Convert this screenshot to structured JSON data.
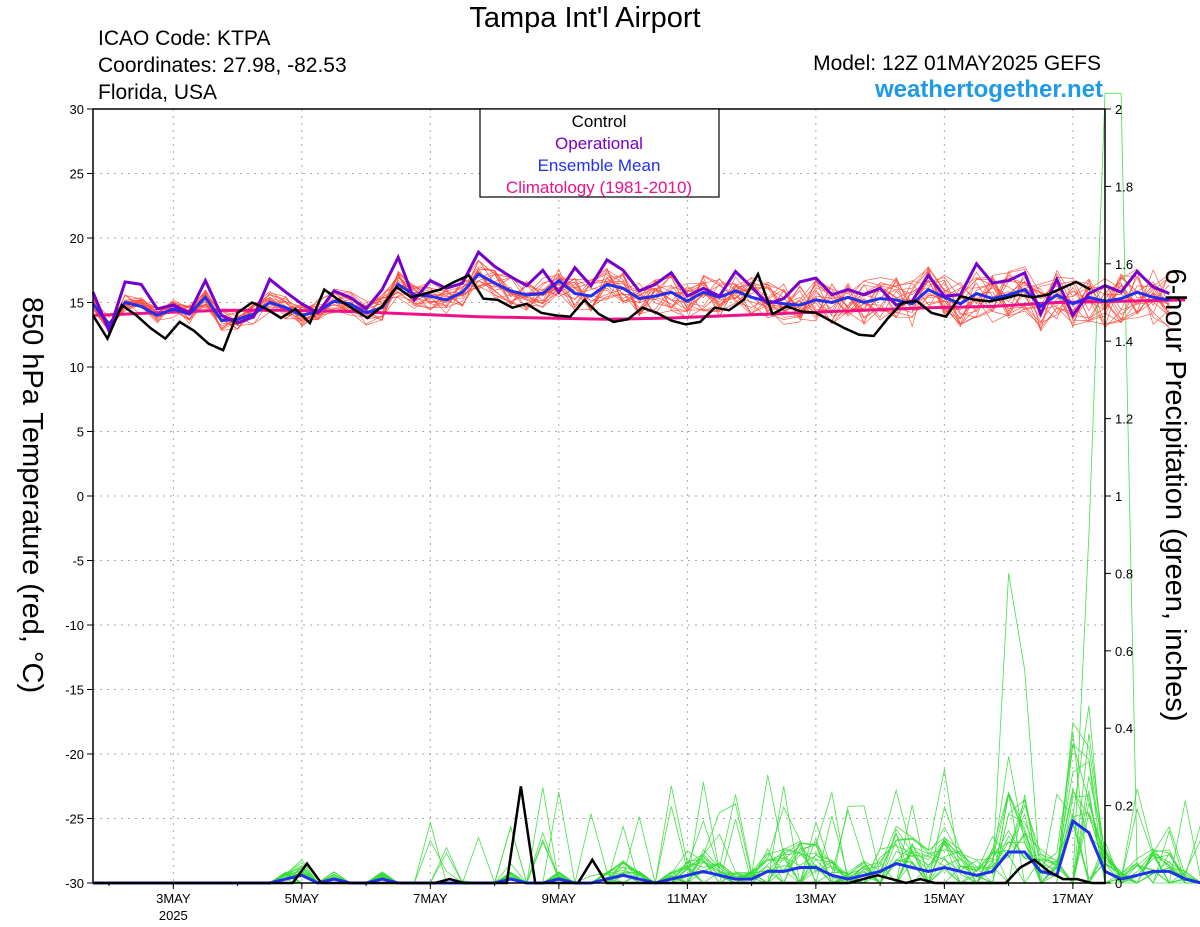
{
  "header": {
    "title": "Tampa Int'l Airport",
    "icao": "ICAO Code: KTPA",
    "coordinates": "Coordinates: 27.98, -82.53",
    "location": "Florida, USA",
    "model": "Model: 12Z 01MAY2025 GEFS",
    "site": "weathertogether.net"
  },
  "chart_data": {
    "type": "line",
    "legend": {
      "placement": "top-center",
      "entries": [
        {
          "label": "Control",
          "color": "#000000"
        },
        {
          "label": "Operational",
          "color": "#7700cc"
        },
        {
          "label": "Ensemble Mean",
          "color": "#2030ee"
        },
        {
          "label": "Climatology (1981-2010)",
          "color": "#ee1188"
        }
      ]
    },
    "y_left": {
      "label": "850 hPa Temperature (red, °C)",
      "range": [
        -30,
        30
      ],
      "ticks": [
        "30",
        "25",
        "20",
        "15",
        "10",
        "5",
        "0",
        "-5",
        "-10",
        "-15",
        "-20",
        "-25",
        "-30"
      ]
    },
    "y_right": {
      "label": "6-hour Precipitation (green, inches)",
      "range": [
        0,
        2
      ],
      "ticks": [
        "2",
        "1.8",
        "1.6",
        "1.4",
        "1.2",
        "1",
        "0.8",
        "0.6",
        "0.4",
        "0.2",
        "0"
      ]
    },
    "x_axis": {
      "range_days": [
        1.75,
        17.5
      ],
      "ticks": [
        {
          "day": 3,
          "label": "3MAY",
          "sub": "2025"
        },
        {
          "day": 5,
          "label": "5MAY"
        },
        {
          "day": 7,
          "label": "7MAY"
        },
        {
          "day": 9,
          "label": "9MAY"
        },
        {
          "day": 11,
          "label": "11MAY"
        },
        {
          "day": 13,
          "label": "13MAY"
        },
        {
          "day": 15,
          "label": "15MAY"
        },
        {
          "day": 17,
          "label": "17MAY"
        }
      ]
    },
    "grid": true,
    "colors": {
      "members_temp": "#ff4a3a",
      "members_precip": "#33dd33",
      "control": "#000000",
      "operational": "#7700cc",
      "mean": "#2030ee",
      "climatology": "#ee1188"
    },
    "control_temp": [
      14.0,
      12.2,
      14.8,
      14.0,
      13.0,
      12.2,
      13.5,
      12.8,
      11.8,
      11.3,
      14.2,
      15.0,
      14.5,
      13.8,
      14.5,
      13.4,
      16.0,
      15.2,
      14.5,
      13.8,
      14.7,
      16.2,
      15.4,
      15.7,
      16.0,
      16.6,
      17.1,
      15.3,
      15.2,
      14.6,
      14.9,
      14.2,
      14.0,
      13.9,
      15.2,
      14.1,
      13.5,
      13.7,
      14.6,
      14.2,
      13.6,
      13.3,
      13.5,
      14.6,
      14.4,
      15.2,
      17.2,
      14.1,
      14.7,
      14.3,
      14.2,
      13.6,
      13.0,
      12.5,
      12.4,
      13.8,
      15.0,
      15.1,
      14.2,
      13.9,
      15.5,
      15.2,
      15.1,
      15.3,
      15.6,
      15.4,
      15.6,
      16.1,
      16.6,
      16.0
    ],
    "operational_temp": [
      15.8,
      12.8,
      16.6,
      16.4,
      14.5,
      14.8,
      14.2,
      16.7,
      14.0,
      13.4,
      13.9,
      16.8,
      15.8,
      14.9,
      14.2,
      15.9,
      15.4,
      14.5,
      16.0,
      18.5,
      15.2,
      16.7,
      16.1,
      16.5,
      18.9,
      17.8,
      17.0,
      16.3,
      17.5,
      15.8,
      17.7,
      16.3,
      18.3,
      17.5,
      15.9,
      16.4,
      17.3,
      15.5,
      16.1,
      15.5,
      17.4,
      16.2,
      14.9,
      15.3,
      16.6,
      16.9,
      15.6,
      16.0,
      15.6,
      16.1,
      14.8,
      15.1,
      17.1,
      15.5,
      15.6,
      18.0,
      16.5,
      16.7,
      17.3,
      14.1,
      16.8,
      14.0,
      15.7,
      16.3,
      15.8,
      17.4,
      16.2,
      15.7
    ],
    "mean_temp": [
      14.9,
      13.3,
      15.0,
      14.7,
      14.0,
      14.5,
      14.1,
      15.4,
      13.6,
      13.7,
      14.1,
      15.0,
      14.6,
      14.0,
      14.3,
      15.1,
      14.9,
      14.2,
      14.6,
      16.4,
      15.6,
      15.5,
      15.2,
      15.8,
      17.2,
      16.5,
      15.9,
      15.6,
      15.7,
      16.7,
      15.7,
      15.5,
      16.4,
      16.1,
      15.3,
      15.5,
      15.8,
      15.1,
      15.8,
      15.4,
      15.9,
      15.4,
      15.1,
      14.9,
      14.8,
      15.2,
      15.0,
      15.4,
      15.0,
      15.3,
      15.2,
      14.9,
      16.0,
      15.4,
      14.9,
      15.7,
      15.3,
      15.6,
      16.0,
      14.7,
      15.6,
      14.9,
      15.4,
      15.1,
      15.3,
      15.8,
      15.4,
      15.2
    ],
    "climatology_temp": [
      14.0,
      14.2,
      14.4,
      14.4,
      14.3,
      14.1,
      13.9,
      13.8,
      13.7,
      13.8,
      14.0,
      14.2,
      14.4,
      14.6,
      14.7,
      15.0,
      15.1,
      15.2
    ],
    "control_precip": [
      0,
      0,
      0,
      0,
      0,
      0,
      0,
      0,
      0,
      0,
      0,
      0,
      0,
      0,
      0,
      0.05,
      0,
      0,
      0,
      0,
      0,
      0,
      0,
      0,
      0,
      0.01,
      0,
      0,
      0,
      0,
      0.25,
      0,
      0,
      0,
      0,
      0.06,
      0,
      0,
      0,
      0,
      0,
      0,
      0,
      0,
      0,
      0,
      0,
      0,
      0,
      0,
      0,
      0,
      0,
      0,
      0.01,
      0.02,
      0.01,
      0,
      0.01,
      0,
      0,
      0,
      0,
      0,
      0,
      0.04,
      0.06,
      0.03,
      0.01,
      0.01,
      0,
      0
    ],
    "mean_precip": [
      0,
      0,
      0,
      0,
      0,
      0,
      0,
      0,
      0,
      0,
      0,
      0,
      0.01,
      0.02,
      0,
      0.01,
      0,
      0,
      0.01,
      0,
      0,
      0,
      0,
      0,
      0,
      0,
      0.01,
      0,
      0,
      0.01,
      0,
      0,
      0.01,
      0.02,
      0.01,
      0,
      0.01,
      0.02,
      0.03,
      0.02,
      0.01,
      0.01,
      0.03,
      0.03,
      0.04,
      0.04,
      0.02,
      0.01,
      0.02,
      0.03,
      0.05,
      0.04,
      0.03,
      0.04,
      0.03,
      0.02,
      0.03,
      0.08,
      0.08,
      0.03,
      0.02,
      0.16,
      0.13,
      0.03,
      0.01,
      0.02,
      0.03,
      0.03,
      0.01,
      0
    ]
  }
}
